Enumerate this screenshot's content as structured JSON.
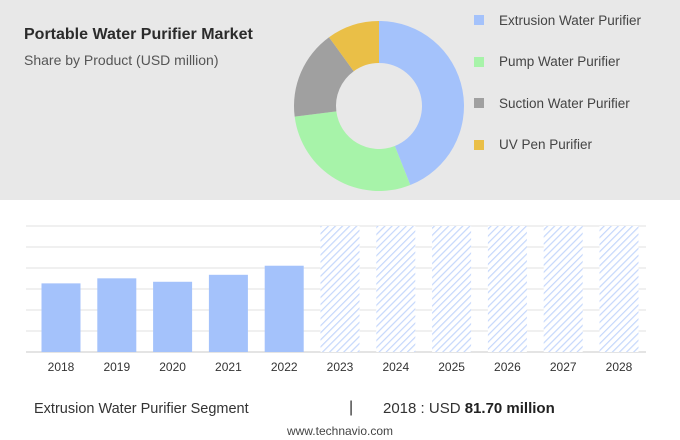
{
  "header": {
    "title": "Portable Water Purifier Market",
    "subtitle": "Share by Product (USD million)"
  },
  "chart_data": [
    {
      "type": "pie",
      "style": "donut",
      "title": "Portable Water Purifier Market",
      "subtitle": "Share by Product (USD million)",
      "legend_placement": "right",
      "slices": [
        {
          "label": "Extrusion Water Purifier",
          "share": 0.44,
          "color": "#a4c2fb"
        },
        {
          "label": "Pump Water Purifier",
          "share": 0.29,
          "color": "#a7f3a9"
        },
        {
          "label": "Suction Water Purifier",
          "share": 0.17,
          "color": "#a0a0a0"
        },
        {
          "label": "UV Pen Purifier",
          "share": 0.1,
          "color": "#eabf47"
        }
      ]
    },
    {
      "type": "bar",
      "series_name": "Extrusion Water Purifier Segment",
      "categories": [
        "2018",
        "2019",
        "2020",
        "2021",
        "2022",
        "2023",
        "2024",
        "2025",
        "2026",
        "2027",
        "2028"
      ],
      "values": [
        81.7,
        87.7,
        83.6,
        91.9,
        102.7,
        null,
        null,
        null,
        null,
        null,
        null
      ],
      "forecast_categories": [
        "2023",
        "2024",
        "2025",
        "2026",
        "2027",
        "2028"
      ],
      "ylim": [
        0,
        150
      ],
      "grid": true,
      "bar_color": "#a4c2fb",
      "forecast_color": "#c5d7fc"
    }
  ],
  "footer": {
    "segment_label": "Extrusion Water Purifier Segment",
    "separator": "|",
    "year_prefix": "2018 : USD ",
    "value_text": "81.70 million",
    "website": "www.technavio.com"
  }
}
